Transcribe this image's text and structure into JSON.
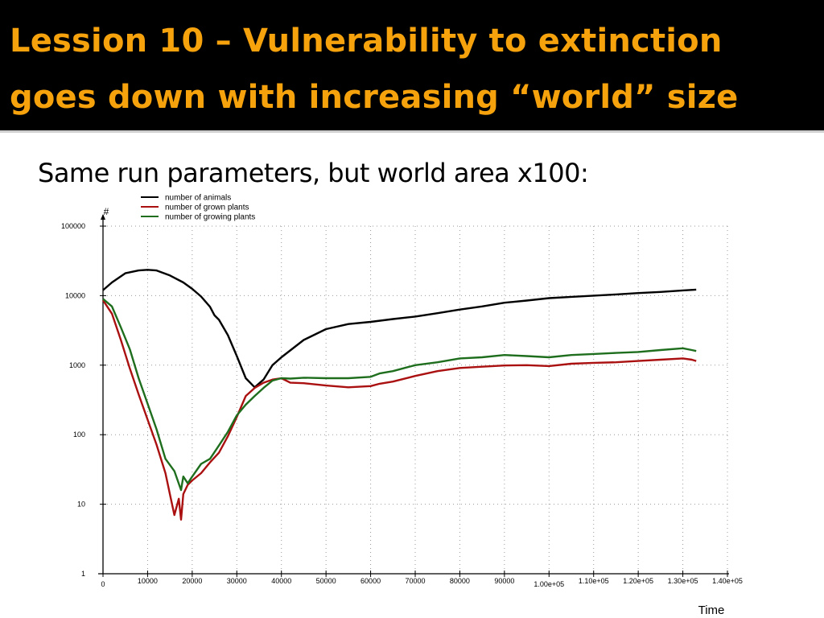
{
  "slide": {
    "title_line1": "Lession 10 – Vulnerability to extinction",
    "title_line2": "goes down with increasing “world” size",
    "subtitle": "Same run parameters, but world area x100:",
    "title_color": "#f5a20d",
    "title_bg": "#000000"
  },
  "chart_data": {
    "type": "line",
    "yscale": "log",
    "ylabel": "#",
    "xlabel": "Time",
    "xlim": [
      0,
      140000
    ],
    "ylim": [
      1,
      100000
    ],
    "grid": true,
    "legend_position": "top-left",
    "x_tick_labels": [
      "0",
      "10000",
      "20000",
      "30000",
      "40000",
      "50000",
      "60000",
      "70000",
      "80000",
      "90000",
      "1.00e+05",
      "1.10e+05",
      "1.20e+05",
      "1.30e+05",
      "1.40e+05"
    ],
    "y_tick_labels": [
      "1",
      "10",
      "100",
      "1000",
      "10000",
      "100000"
    ],
    "series": [
      {
        "name": "number of animals",
        "color": "#000000",
        "x": [
          0,
          2000,
          5000,
          8000,
          10000,
          12000,
          15000,
          18000,
          20000,
          22000,
          24000,
          25000,
          26000,
          28000,
          30000,
          32000,
          34000,
          36000,
          38000,
          40000,
          45000,
          50000,
          55000,
          60000,
          65000,
          70000,
          75000,
          80000,
          85000,
          90000,
          95000,
          100000,
          105000,
          110000,
          115000,
          120000,
          125000,
          130000,
          133000
        ],
        "y": [
          12000,
          15500,
          21000,
          23000,
          23500,
          23000,
          19500,
          15500,
          12500,
          9700,
          6900,
          5200,
          4500,
          2700,
          1350,
          650,
          480,
          620,
          1000,
          1300,
          2300,
          3300,
          3900,
          4200,
          4600,
          5000,
          5600,
          6300,
          7000,
          7900,
          8500,
          9200,
          9600,
          10000,
          10400,
          10900,
          11300,
          11900,
          12200
        ]
      },
      {
        "name": "number of grown plants",
        "color": "#aa1010",
        "x": [
          0,
          2000,
          4000,
          6000,
          8000,
          10000,
          12000,
          14000,
          15000,
          16000,
          17000,
          17500,
          18000,
          19000,
          20000,
          22000,
          24000,
          26000,
          28000,
          30000,
          32000,
          34000,
          36000,
          38000,
          40000,
          42000,
          45000,
          50000,
          55000,
          60000,
          62000,
          65000,
          70000,
          75000,
          80000,
          85000,
          90000,
          95000,
          100000,
          105000,
          110000,
          115000,
          120000,
          125000,
          130000,
          132000,
          133000
        ],
        "y": [
          8600,
          5500,
          2300,
          900,
          380,
          165,
          72,
          28,
          14,
          7,
          12,
          6,
          14,
          19,
          22,
          28,
          40,
          55,
          95,
          180,
          360,
          470,
          560,
          620,
          650,
          560,
          550,
          510,
          480,
          500,
          540,
          580,
          700,
          820,
          910,
          950,
          990,
          1000,
          970,
          1050,
          1080,
          1100,
          1150,
          1200,
          1250,
          1200,
          1150
        ]
      },
      {
        "name": "number of growing plants",
        "color": "#1e6e1e",
        "x": [
          0,
          2000,
          4000,
          6000,
          8000,
          10000,
          12000,
          14000,
          16000,
          17500,
          18000,
          19000,
          20000,
          22000,
          24000,
          26000,
          28000,
          30000,
          32000,
          34000,
          36000,
          38000,
          40000,
          42000,
          45000,
          50000,
          55000,
          60000,
          62000,
          65000,
          70000,
          75000,
          80000,
          85000,
          90000,
          95000,
          100000,
          105000,
          110000,
          115000,
          120000,
          125000,
          130000,
          132000,
          133000
        ],
        "y": [
          9000,
          7000,
          3500,
          1700,
          650,
          280,
          120,
          45,
          30,
          16,
          25,
          20,
          25,
          38,
          45,
          70,
          110,
          190,
          270,
          360,
          470,
          600,
          650,
          640,
          660,
          650,
          650,
          680,
          760,
          820,
          1000,
          1100,
          1250,
          1300,
          1400,
          1350,
          1300,
          1400,
          1450,
          1500,
          1550,
          1650,
          1750,
          1650,
          1600
        ]
      }
    ]
  }
}
